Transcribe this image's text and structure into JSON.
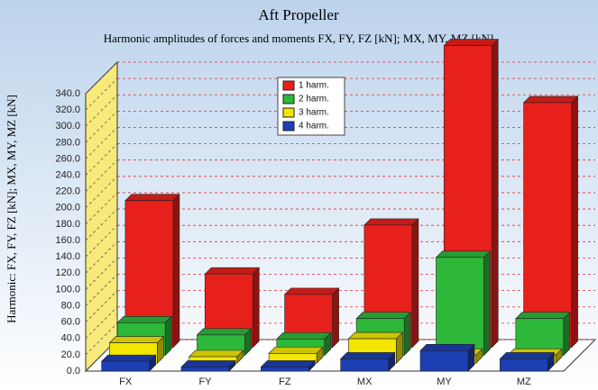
{
  "chart_data": {
    "type": "bar3d",
    "title": "Aft Propeller",
    "subtitle": "Harmonic amplitudes of forces and moments FX, FY, FZ [kN]; MX, MY, MZ [kN]",
    "y_label": "Harmonic: FX, FY, FZ [kN]; MX, MY, MZ [kN]",
    "categories": [
      "FX",
      "FY",
      "FZ",
      "MX",
      "MY",
      "MZ"
    ],
    "series": [
      {
        "name": "1 harm.",
        "color": "#e8201c",
        "values": [
          180,
          90,
          65,
          150,
          370,
          300
        ]
      },
      {
        "name": "2 harm.",
        "color": "#2db83a",
        "values": [
          40,
          25,
          20,
          45,
          120,
          45
        ]
      },
      {
        "name": "3 harm.",
        "color": "#f2e600",
        "values": [
          25,
          8,
          12,
          30,
          10,
          10
        ]
      },
      {
        "name": "4 harm.",
        "color": "#1c3fb4",
        "values": [
          12,
          5,
          5,
          15,
          25,
          15
        ]
      }
    ],
    "ylim": [
      0,
      340
    ],
    "yticks": [
      {
        "value": 0,
        "label": "0.0"
      },
      {
        "value": 20,
        "label": "20.0"
      },
      {
        "value": 40,
        "label": "40.0"
      },
      {
        "value": 60,
        "label": "60.0"
      },
      {
        "value": 80,
        "label": "80.0"
      },
      {
        "value": 100,
        "label": "100.0"
      },
      {
        "value": 120,
        "label": "120.0"
      },
      {
        "value": 140,
        "label": "140.0"
      },
      {
        "value": 160,
        "label": "160.0"
      },
      {
        "value": 180,
        "label": "180.0"
      },
      {
        "value": 200,
        "label": "200.0"
      },
      {
        "value": 220,
        "label": "220.0"
      },
      {
        "value": 240,
        "label": "240.0"
      },
      {
        "value": 260,
        "label": "260.0"
      },
      {
        "value": 280,
        "label": "280.0"
      },
      {
        "value": 300,
        "label": "300.0"
      },
      {
        "value": 320,
        "label": "320.0"
      },
      {
        "value": 340,
        "label": "340.0"
      }
    ],
    "grid": true
  }
}
